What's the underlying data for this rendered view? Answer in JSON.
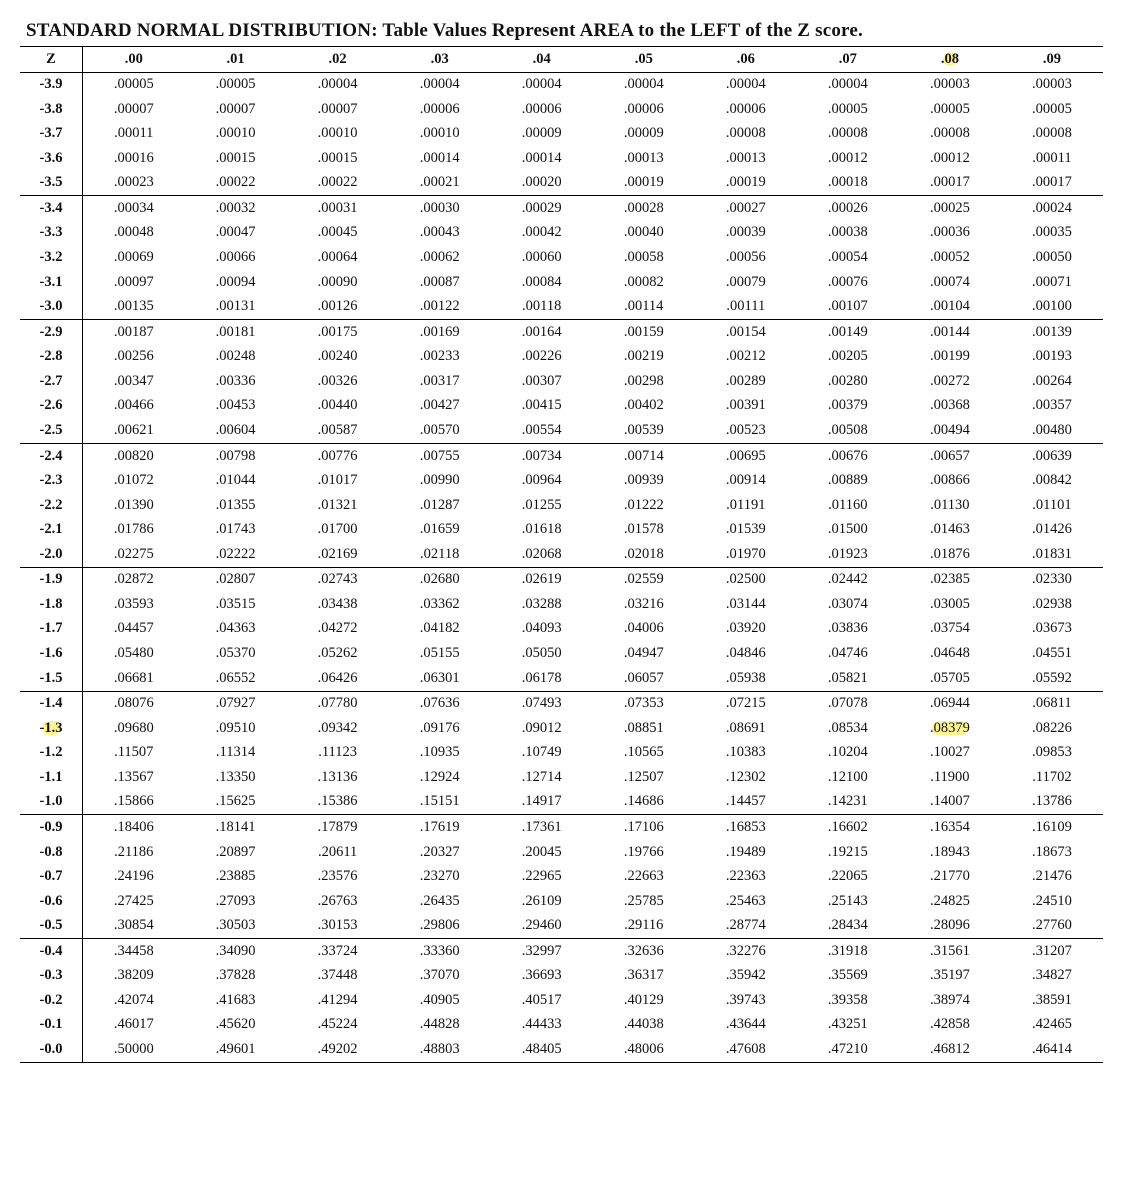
{
  "title": "STANDARD NORMAL DISTRIBUTION: Table Values Represent AREA to the LEFT of the Z score.",
  "columns": [
    "Z",
    ".00",
    ".01",
    ".02",
    ".03",
    ".04",
    ".05",
    ".06",
    ".07",
    ".08",
    ".09"
  ],
  "highlight_header_col": 9,
  "highlight_cells": [
    {
      "row_z": "-1.3",
      "col": 0
    },
    {
      "row_z": "-1.3",
      "col": 9
    }
  ],
  "section_breaks_after": [
    "-3.5",
    "-3.0",
    "-2.5",
    "-2.0",
    "-1.5",
    "-1.0",
    "-0.5"
  ],
  "colors": {
    "highlight": "#ffeb3b",
    "text": "#111111",
    "line": "#000000",
    "background": "#ffffff"
  },
  "typography": {
    "title_fontsize_pt": 15,
    "cell_fontsize_pt": 11,
    "font_family": "Times New Roman"
  },
  "rows": [
    {
      "z": "-3.9",
      "v": [
        ".00005",
        ".00005",
        ".00004",
        ".00004",
        ".00004",
        ".00004",
        ".00004",
        ".00004",
        ".00003",
        ".00003"
      ]
    },
    {
      "z": "-3.8",
      "v": [
        ".00007",
        ".00007",
        ".00007",
        ".00006",
        ".00006",
        ".00006",
        ".00006",
        ".00005",
        ".00005",
        ".00005"
      ]
    },
    {
      "z": "-3.7",
      "v": [
        ".00011",
        ".00010",
        ".00010",
        ".00010",
        ".00009",
        ".00009",
        ".00008",
        ".00008",
        ".00008",
        ".00008"
      ]
    },
    {
      "z": "-3.6",
      "v": [
        ".00016",
        ".00015",
        ".00015",
        ".00014",
        ".00014",
        ".00013",
        ".00013",
        ".00012",
        ".00012",
        ".00011"
      ]
    },
    {
      "z": "-3.5",
      "v": [
        ".00023",
        ".00022",
        ".00022",
        ".00021",
        ".00020",
        ".00019",
        ".00019",
        ".00018",
        ".00017",
        ".00017"
      ]
    },
    {
      "z": "-3.4",
      "v": [
        ".00034",
        ".00032",
        ".00031",
        ".00030",
        ".00029",
        ".00028",
        ".00027",
        ".00026",
        ".00025",
        ".00024"
      ]
    },
    {
      "z": "-3.3",
      "v": [
        ".00048",
        ".00047",
        ".00045",
        ".00043",
        ".00042",
        ".00040",
        ".00039",
        ".00038",
        ".00036",
        ".00035"
      ]
    },
    {
      "z": "-3.2",
      "v": [
        ".00069",
        ".00066",
        ".00064",
        ".00062",
        ".00060",
        ".00058",
        ".00056",
        ".00054",
        ".00052",
        ".00050"
      ]
    },
    {
      "z": "-3.1",
      "v": [
        ".00097",
        ".00094",
        ".00090",
        ".00087",
        ".00084",
        ".00082",
        ".00079",
        ".00076",
        ".00074",
        ".00071"
      ]
    },
    {
      "z": "-3.0",
      "v": [
        ".00135",
        ".00131",
        ".00126",
        ".00122",
        ".00118",
        ".00114",
        ".00111",
        ".00107",
        ".00104",
        ".00100"
      ]
    },
    {
      "z": "-2.9",
      "v": [
        ".00187",
        ".00181",
        ".00175",
        ".00169",
        ".00164",
        ".00159",
        ".00154",
        ".00149",
        ".00144",
        ".00139"
      ]
    },
    {
      "z": "-2.8",
      "v": [
        ".00256",
        ".00248",
        ".00240",
        ".00233",
        ".00226",
        ".00219",
        ".00212",
        ".00205",
        ".00199",
        ".00193"
      ]
    },
    {
      "z": "-2.7",
      "v": [
        ".00347",
        ".00336",
        ".00326",
        ".00317",
        ".00307",
        ".00298",
        ".00289",
        ".00280",
        ".00272",
        ".00264"
      ]
    },
    {
      "z": "-2.6",
      "v": [
        ".00466",
        ".00453",
        ".00440",
        ".00427",
        ".00415",
        ".00402",
        ".00391",
        ".00379",
        ".00368",
        ".00357"
      ]
    },
    {
      "z": "-2.5",
      "v": [
        ".00621",
        ".00604",
        ".00587",
        ".00570",
        ".00554",
        ".00539",
        ".00523",
        ".00508",
        ".00494",
        ".00480"
      ]
    },
    {
      "z": "-2.4",
      "v": [
        ".00820",
        ".00798",
        ".00776",
        ".00755",
        ".00734",
        ".00714",
        ".00695",
        ".00676",
        ".00657",
        ".00639"
      ]
    },
    {
      "z": "-2.3",
      "v": [
        ".01072",
        ".01044",
        ".01017",
        ".00990",
        ".00964",
        ".00939",
        ".00914",
        ".00889",
        ".00866",
        ".00842"
      ]
    },
    {
      "z": "-2.2",
      "v": [
        ".01390",
        ".01355",
        ".01321",
        ".01287",
        ".01255",
        ".01222",
        ".01191",
        ".01160",
        ".01130",
        ".01101"
      ]
    },
    {
      "z": "-2.1",
      "v": [
        ".01786",
        ".01743",
        ".01700",
        ".01659",
        ".01618",
        ".01578",
        ".01539",
        ".01500",
        ".01463",
        ".01426"
      ]
    },
    {
      "z": "-2.0",
      "v": [
        ".02275",
        ".02222",
        ".02169",
        ".02118",
        ".02068",
        ".02018",
        ".01970",
        ".01923",
        ".01876",
        ".01831"
      ]
    },
    {
      "z": "-1.9",
      "v": [
        ".02872",
        ".02807",
        ".02743",
        ".02680",
        ".02619",
        ".02559",
        ".02500",
        ".02442",
        ".02385",
        ".02330"
      ]
    },
    {
      "z": "-1.8",
      "v": [
        ".03593",
        ".03515",
        ".03438",
        ".03362",
        ".03288",
        ".03216",
        ".03144",
        ".03074",
        ".03005",
        ".02938"
      ]
    },
    {
      "z": "-1.7",
      "v": [
        ".04457",
        ".04363",
        ".04272",
        ".04182",
        ".04093",
        ".04006",
        ".03920",
        ".03836",
        ".03754",
        ".03673"
      ]
    },
    {
      "z": "-1.6",
      "v": [
        ".05480",
        ".05370",
        ".05262",
        ".05155",
        ".05050",
        ".04947",
        ".04846",
        ".04746",
        ".04648",
        ".04551"
      ]
    },
    {
      "z": "-1.5",
      "v": [
        ".06681",
        ".06552",
        ".06426",
        ".06301",
        ".06178",
        ".06057",
        ".05938",
        ".05821",
        ".05705",
        ".05592"
      ]
    },
    {
      "z": "-1.4",
      "v": [
        ".08076",
        ".07927",
        ".07780",
        ".07636",
        ".07493",
        ".07353",
        ".07215",
        ".07078",
        ".06944",
        ".06811"
      ]
    },
    {
      "z": "-1.3",
      "v": [
        ".09680",
        ".09510",
        ".09342",
        ".09176",
        ".09012",
        ".08851",
        ".08691",
        ".08534",
        ".08379",
        ".08226"
      ]
    },
    {
      "z": "-1.2",
      "v": [
        ".11507",
        ".11314",
        ".11123",
        ".10935",
        ".10749",
        ".10565",
        ".10383",
        ".10204",
        ".10027",
        ".09853"
      ]
    },
    {
      "z": "-1.1",
      "v": [
        ".13567",
        ".13350",
        ".13136",
        ".12924",
        ".12714",
        ".12507",
        ".12302",
        ".12100",
        ".11900",
        ".11702"
      ]
    },
    {
      "z": "-1.0",
      "v": [
        ".15866",
        ".15625",
        ".15386",
        ".15151",
        ".14917",
        ".14686",
        ".14457",
        ".14231",
        ".14007",
        ".13786"
      ]
    },
    {
      "z": "-0.9",
      "v": [
        ".18406",
        ".18141",
        ".17879",
        ".17619",
        ".17361",
        ".17106",
        ".16853",
        ".16602",
        ".16354",
        ".16109"
      ]
    },
    {
      "z": "-0.8",
      "v": [
        ".21186",
        ".20897",
        ".20611",
        ".20327",
        ".20045",
        ".19766",
        ".19489",
        ".19215",
        ".18943",
        ".18673"
      ]
    },
    {
      "z": "-0.7",
      "v": [
        ".24196",
        ".23885",
        ".23576",
        ".23270",
        ".22965",
        ".22663",
        ".22363",
        ".22065",
        ".21770",
        ".21476"
      ]
    },
    {
      "z": "-0.6",
      "v": [
        ".27425",
        ".27093",
        ".26763",
        ".26435",
        ".26109",
        ".25785",
        ".25463",
        ".25143",
        ".24825",
        ".24510"
      ]
    },
    {
      "z": "-0.5",
      "v": [
        ".30854",
        ".30503",
        ".30153",
        ".29806",
        ".29460",
        ".29116",
        ".28774",
        ".28434",
        ".28096",
        ".27760"
      ]
    },
    {
      "z": "-0.4",
      "v": [
        ".34458",
        ".34090",
        ".33724",
        ".33360",
        ".32997",
        ".32636",
        ".32276",
        ".31918",
        ".31561",
        ".31207"
      ]
    },
    {
      "z": "-0.3",
      "v": [
        ".38209",
        ".37828",
        ".37448",
        ".37070",
        ".36693",
        ".36317",
        ".35942",
        ".35569",
        ".35197",
        ".34827"
      ]
    },
    {
      "z": "-0.2",
      "v": [
        ".42074",
        ".41683",
        ".41294",
        ".40905",
        ".40517",
        ".40129",
        ".39743",
        ".39358",
        ".38974",
        ".38591"
      ]
    },
    {
      "z": "-0.1",
      "v": [
        ".46017",
        ".45620",
        ".45224",
        ".44828",
        ".44433",
        ".44038",
        ".43644",
        ".43251",
        ".42858",
        ".42465"
      ]
    },
    {
      "z": "-0.0",
      "v": [
        ".50000",
        ".49601",
        ".49202",
        ".48803",
        ".48405",
        ".48006",
        ".47608",
        ".47210",
        ".46812",
        ".46414"
      ]
    }
  ]
}
